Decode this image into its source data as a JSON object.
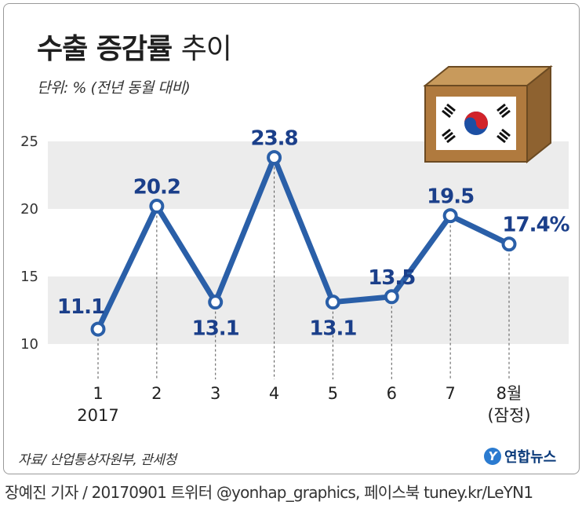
{
  "title_bold": "수출 증감률",
  "title_light": "추이",
  "subtitle": "단위: % (전년 동월 대비)",
  "source": "자료/ 산업통상자원부, 관세청",
  "agency": {
    "logo": "Y",
    "name": "연합뉴스"
  },
  "credit": "장예진 기자 / 20170901 트위터 @yonhap_graphics, 페이스북 tuney.kr/LeYN1",
  "colors": {
    "line": "#2a5fa8",
    "label": "#1b3f8a",
    "band": "#ececec",
    "axis": "#444444"
  },
  "icon": "korean-flag-box-icon",
  "chart_data": {
    "type": "line",
    "title": "수출 증감률 추이",
    "ylabel": "단위: % (전년 동월 대비)",
    "ylim": [
      10,
      25
    ],
    "yticks": [
      10,
      15,
      20,
      25
    ],
    "grid": "alternating horizontal bands",
    "categories": [
      "1",
      "2",
      "3",
      "4",
      "5",
      "6",
      "7",
      "8월"
    ],
    "category_sublabels": [
      "2017",
      "",
      "",
      "",
      "",
      "",
      "",
      "(잠정)"
    ],
    "series": [
      {
        "values": [
          11.1,
          20.2,
          13.1,
          23.8,
          13.1,
          13.5,
          19.5,
          17.4
        ]
      }
    ],
    "data_labels": [
      "11.1",
      "20.2",
      "13.1",
      "23.8",
      "13.1",
      "13.5",
      "19.5",
      "17.4%"
    ]
  }
}
